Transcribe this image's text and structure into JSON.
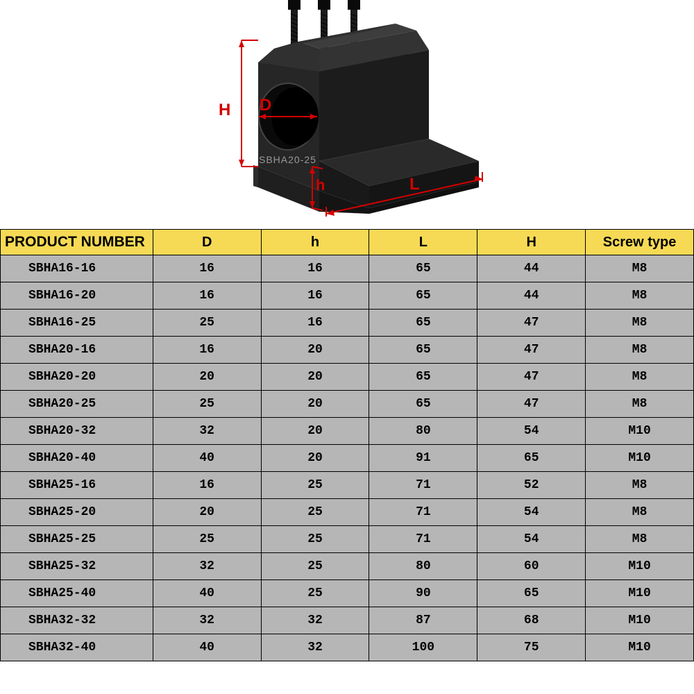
{
  "diagram": {
    "labels": {
      "H": "H",
      "D": "D",
      "h": "h",
      "L": "L"
    },
    "part_text": "SBHA20-25",
    "line_color": "#d40000",
    "label_color": "#d40000",
    "label_fontsize": 24,
    "block_color_dark": "#1a1a1a",
    "block_color_mid": "#2e2e2e",
    "block_color_light": "#3a3a3a",
    "screw_color": "#0a0a0a"
  },
  "table": {
    "header_bg": "#f6da55",
    "cell_bg": "#b6b6b6",
    "border_color": "#000000",
    "header_fontsize": 20,
    "cell_fontsize": 18,
    "columns": [
      "PRODUCT NUMBER",
      "D",
      "h",
      "L",
      "H",
      "Screw type"
    ],
    "rows": [
      [
        "SBHA16-16",
        "16",
        "16",
        "65",
        "44",
        "M8"
      ],
      [
        "SBHA16-20",
        "16",
        "16",
        "65",
        "44",
        "M8"
      ],
      [
        "SBHA16-25",
        "25",
        "16",
        "65",
        "47",
        "M8"
      ],
      [
        "SBHA20-16",
        "16",
        "20",
        "65",
        "47",
        "M8"
      ],
      [
        "SBHA20-20",
        "20",
        "20",
        "65",
        "47",
        "M8"
      ],
      [
        "SBHA20-25",
        "25",
        "20",
        "65",
        "47",
        "M8"
      ],
      [
        "SBHA20-32",
        "32",
        "20",
        "80",
        "54",
        "M10"
      ],
      [
        "SBHA20-40",
        "40",
        "20",
        "91",
        "65",
        "M10"
      ],
      [
        "SBHA25-16",
        "16",
        "25",
        "71",
        "52",
        "M8"
      ],
      [
        "SBHA25-20",
        "20",
        "25",
        "71",
        "54",
        "M8"
      ],
      [
        "SBHA25-25",
        "25",
        "25",
        "71",
        "54",
        "M8"
      ],
      [
        "SBHA25-32",
        "32",
        "25",
        "80",
        "60",
        "M10"
      ],
      [
        "SBHA25-40",
        "40",
        "25",
        "90",
        "65",
        "M10"
      ],
      [
        "SBHA32-32",
        "32",
        "32",
        "87",
        "68",
        "M10"
      ],
      [
        "SBHA32-40",
        "40",
        "32",
        "100",
        "75",
        "M10"
      ]
    ]
  }
}
